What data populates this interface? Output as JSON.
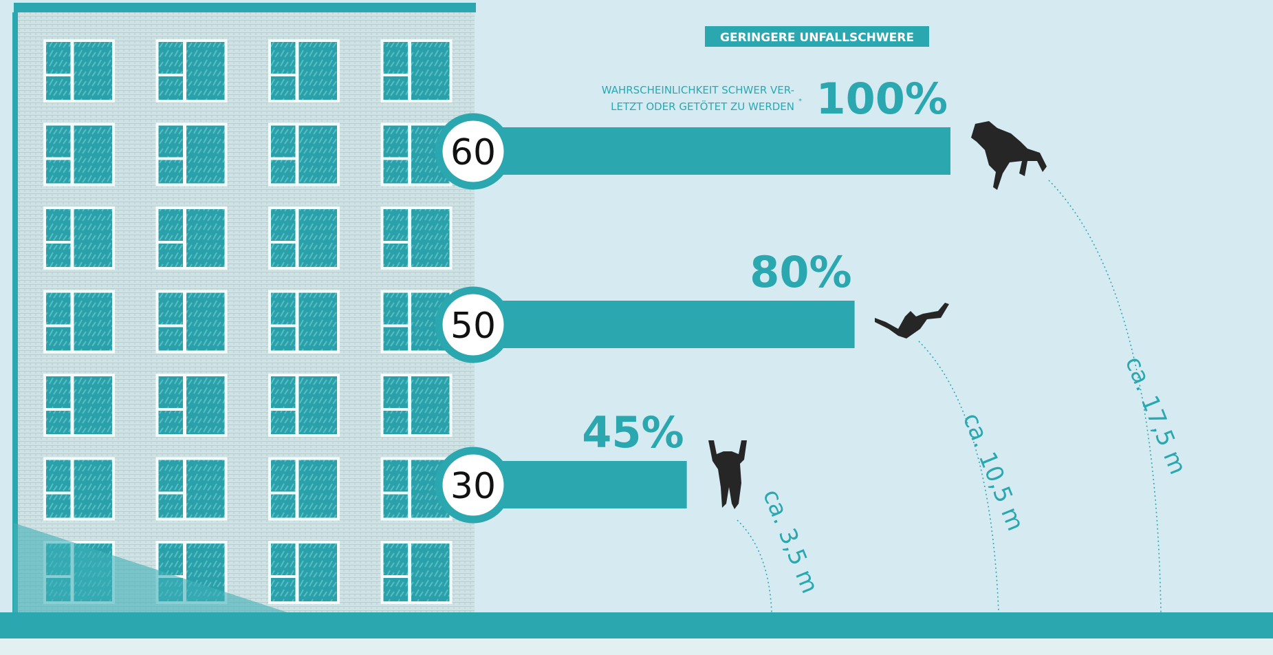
{
  "chart_data": {
    "type": "bar",
    "orientation": "horizontal",
    "badge": "GERINGERE UNFALLSCHWERE",
    "annotation_lines": [
      "WAHRSCHEINLICHKEIT SCHWER VER-",
      "LETZT ODER GETÖTET ZU WERDEN"
    ],
    "annotation_mark": "*",
    "categories": [
      "60",
      "50",
      "30"
    ],
    "values": [
      100,
      80,
      45
    ],
    "value_labels": [
      "100%",
      "80%",
      "45%"
    ],
    "fall_heights": [
      "ca. 17,5 m",
      "ca. 10,5 m",
      "ca. 3,5 m"
    ],
    "color": "#2ba7b0"
  }
}
